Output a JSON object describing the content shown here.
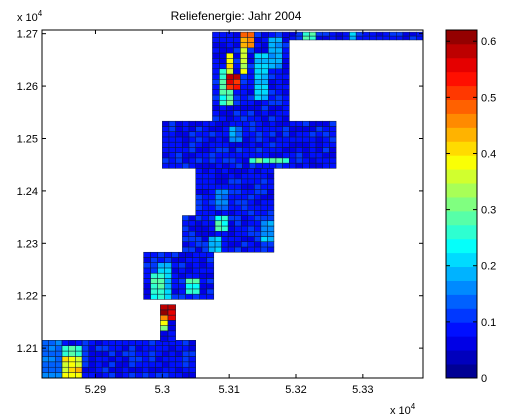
{
  "chart_data": {
    "type": "heatmap",
    "title": "Reliefenergie: Jahr 2004",
    "xlabel": "",
    "ylabel": "",
    "x_exponent_label": "x 10",
    "x_exponent_power": "4",
    "y_exponent_label": "x 10",
    "y_exponent_power": "4",
    "xlim": [
      5.282,
      5.339
    ],
    "ylim": [
      1.2043,
      1.2707
    ],
    "x_ticks": [
      5.29,
      5.3,
      5.31,
      5.32,
      5.33
    ],
    "x_tick_labels": [
      "5.29",
      "5.3",
      "5.31",
      "5.32",
      "5.33"
    ],
    "y_ticks": [
      1.21,
      1.22,
      1.23,
      1.24,
      1.25,
      1.26,
      1.27
    ],
    "y_tick_labels": [
      "1.21",
      "1.22",
      "1.23",
      "1.24",
      "1.25",
      "1.26",
      "1.27"
    ],
    "cell_size": 0.001,
    "colorbar": {
      "range": [
        0,
        0.62
      ],
      "ticks": [
        0,
        0.1,
        0.2,
        0.3,
        0.4,
        0.5,
        0.6
      ],
      "tick_labels": [
        "0",
        "0.1",
        "0.2",
        "0.3",
        "0.4",
        "0.5",
        "0.6"
      ],
      "levels": 25,
      "colormap": "jet"
    },
    "grid": false,
    "regions": [
      {
        "x": [
          5.282,
          5.305
        ],
        "y": [
          1.2043,
          1.2115
        ],
        "base": 0.06
      },
      {
        "x": [
          5.2997,
          5.302
        ],
        "y": [
          1.2113,
          1.2183
        ],
        "base": 0.06
      },
      {
        "x": [
          5.2972,
          5.3077
        ],
        "y": [
          1.2193,
          1.2283
        ],
        "base": 0.06
      },
      {
        "x": [
          5.303,
          5.3167
        ],
        "y": [
          1.2283,
          1.2353
        ],
        "base": 0.06
      },
      {
        "x": [
          5.305,
          5.3167
        ],
        "y": [
          1.2353,
          1.2443
        ],
        "base": 0.06
      },
      {
        "x": [
          5.3,
          5.326
        ],
        "y": [
          1.2443,
          1.2533
        ],
        "base": 0.06
      },
      {
        "x": [
          5.3075,
          5.319
        ],
        "y": [
          1.2533,
          1.2703
        ],
        "base": 0.06
      },
      {
        "x": [
          5.319,
          5.339
        ],
        "y": [
          1.2688,
          1.2703
        ],
        "base": 0.06
      }
    ],
    "hotspots": [
      {
        "x": 5.2824,
        "y": 1.2047,
        "w": 0.0025,
        "h": 0.0063,
        "v": 0.16
      },
      {
        "x": 5.285,
        "y": 1.2047,
        "w": 0.0028,
        "h": 0.0055,
        "v": 0.3
      },
      {
        "x": 5.2858,
        "y": 1.2047,
        "w": 0.001,
        "h": 0.003,
        "v": 0.42
      },
      {
        "x": 5.287,
        "y": 1.205,
        "w": 0.0008,
        "h": 0.0025,
        "v": 0.45
      },
      {
        "x": 5.299,
        "y": 1.2135,
        "w": 0.001,
        "h": 0.003,
        "v": 0.4
      },
      {
        "x": 5.2998,
        "y": 1.2155,
        "w": 0.0012,
        "h": 0.002,
        "v": 0.55
      },
      {
        "x": 5.3001,
        "y": 1.2168,
        "w": 0.001,
        "h": 0.002,
        "v": 0.62
      },
      {
        "x": 5.2985,
        "y": 1.2195,
        "w": 0.001,
        "h": 0.004,
        "v": 0.3
      },
      {
        "x": 5.3,
        "y": 1.22,
        "w": 0.001,
        "h": 0.006,
        "v": 0.22
      },
      {
        "x": 5.3045,
        "y": 1.221,
        "w": 0.0008,
        "h": 0.002,
        "v": 0.28
      },
      {
        "x": 5.3088,
        "y": 1.2325,
        "w": 0.001,
        "h": 0.002,
        "v": 0.3
      },
      {
        "x": 5.3072,
        "y": 1.229,
        "w": 0.0008,
        "h": 0.002,
        "v": 0.22
      },
      {
        "x": 5.315,
        "y": 1.2305,
        "w": 0.0008,
        "h": 0.0035,
        "v": 0.2
      },
      {
        "x": 5.3085,
        "y": 1.237,
        "w": 0.0008,
        "h": 0.003,
        "v": 0.18
      },
      {
        "x": 5.3135,
        "y": 1.2455,
        "w": 0.005,
        "h": 0.0008,
        "v": 0.3
      },
      {
        "x": 5.3105,
        "y": 1.25,
        "w": 0.001,
        "h": 0.002,
        "v": 0.18
      },
      {
        "x": 5.3095,
        "y": 1.2565,
        "w": 0.0006,
        "h": 0.006,
        "v": 0.3
      },
      {
        "x": 5.3098,
        "y": 1.2605,
        "w": 0.0006,
        "h": 0.005,
        "v": 0.45
      },
      {
        "x": 5.3101,
        "y": 1.2602,
        "w": 0.0006,
        "h": 0.002,
        "v": 0.62
      },
      {
        "x": 5.312,
        "y": 1.263,
        "w": 0.0006,
        "h": 0.0065,
        "v": 0.4
      },
      {
        "x": 5.3125,
        "y": 1.268,
        "w": 0.0006,
        "h": 0.0022,
        "v": 0.5
      },
      {
        "x": 5.3145,
        "y": 1.2575,
        "w": 0.0006,
        "h": 0.008,
        "v": 0.22
      },
      {
        "x": 5.3167,
        "y": 1.264,
        "w": 0.0006,
        "h": 0.005,
        "v": 0.2
      },
      {
        "x": 5.3215,
        "y": 1.2688,
        "w": 0.001,
        "h": 0.0013,
        "v": 0.28
      },
      {
        "x": 5.328,
        "y": 1.2688,
        "w": 0.001,
        "h": 0.0013,
        "v": 0.22
      }
    ]
  }
}
